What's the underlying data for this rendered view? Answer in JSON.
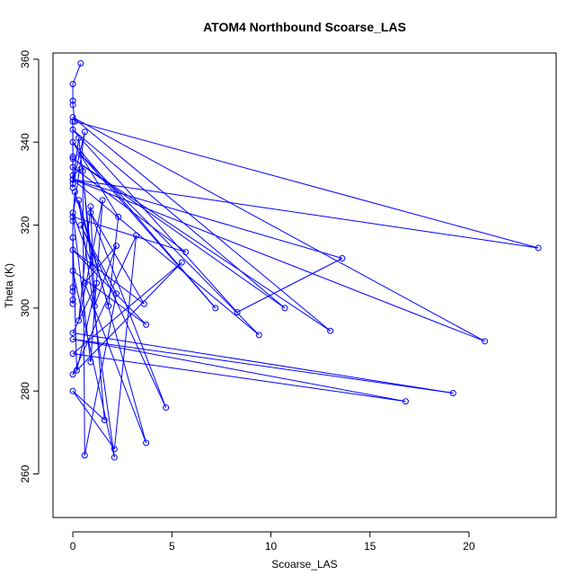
{
  "chart_data": {
    "type": "scatter",
    "title": "ATOM4 Northbound Scoarse_LAS",
    "xlabel": "Scoarse_LAS",
    "ylabel": "Theta (K)",
    "xlim": [
      -1,
      24.4
    ],
    "ylim": [
      249.5,
      361.5
    ],
    "x_ticks": [
      0,
      5,
      10,
      15,
      20
    ],
    "y_ticks": [
      260,
      280,
      300,
      320,
      340,
      360
    ],
    "grid": false,
    "legend": "none",
    "series_color": "#0000ff",
    "connected": true,
    "series": [
      {
        "points": [
          [
            0.4,
            359.0
          ],
          [
            0.0,
            354.0
          ],
          [
            0.0,
            350.0
          ],
          [
            0.0,
            349.0
          ],
          [
            0.1,
            345.0
          ],
          [
            23.5,
            314.5
          ],
          [
            0.0,
            331.0
          ],
          [
            13.6,
            312.0
          ],
          [
            8.3,
            299.0
          ],
          [
            0.0,
            343.0
          ],
          [
            10.7,
            300.0
          ],
          [
            0.0,
            336.0
          ],
          [
            13.0,
            294.5
          ],
          [
            0.0,
            346.0
          ],
          [
            20.8,
            292.0
          ],
          [
            0.0,
            331.0
          ],
          [
            9.4,
            293.5
          ],
          [
            0.4,
            337.0
          ],
          [
            7.2,
            300.0
          ],
          [
            0.0,
            340.0
          ],
          [
            2.3,
            322.0
          ],
          [
            1.8,
            300.5
          ],
          [
            0.1,
            328.0
          ],
          [
            0.0,
            321.0
          ],
          [
            0.0,
            317.0
          ],
          [
            0.0,
            304.0
          ],
          [
            0.0,
            302.0
          ],
          [
            0.0,
            301.0
          ],
          [
            0.0,
            305.0
          ],
          [
            0.0,
            317.0
          ],
          [
            0.2,
            285.0
          ],
          [
            1.2,
            306.0
          ],
          [
            0.0,
            294.0
          ],
          [
            19.2,
            279.5
          ],
          [
            0.0,
            292.5
          ],
          [
            16.8,
            277.5
          ],
          [
            0.0,
            289.0
          ],
          [
            5.5,
            311.0
          ],
          [
            0.0,
            284.0
          ],
          [
            3.2,
            317.5
          ],
          [
            2.1,
            266.0
          ],
          [
            0.0,
            280.0
          ],
          [
            1.6,
            273.0
          ],
          [
            0.5,
            333.0
          ],
          [
            0.6,
            264.5
          ],
          [
            2.2,
            303.5
          ],
          [
            0.4,
            320.0
          ],
          [
            4.7,
            276.0
          ],
          [
            0.9,
            323.0
          ],
          [
            3.6,
            301.0
          ],
          [
            0.0,
            314.0
          ],
          [
            3.7,
            296.0
          ],
          [
            0.0,
            309.0
          ],
          [
            2.1,
            264.0
          ],
          [
            0.3,
            326.0
          ],
          [
            3.7,
            267.5
          ],
          [
            0.6,
            306.0
          ],
          [
            2.2,
            315.0
          ],
          [
            1.1,
            300.5
          ],
          [
            0.9,
            324.5
          ],
          [
            0.3,
            297.0
          ],
          [
            1.5,
            326.0
          ],
          [
            0.9,
            287.0
          ],
          [
            0.0,
            323.0
          ],
          [
            1.0,
            310.0
          ],
          [
            0.3,
            341.0
          ],
          [
            0.0,
            330.0
          ],
          [
            0.6,
            342.5
          ],
          [
            0.0,
            322.0
          ],
          [
            5.7,
            313.5
          ],
          [
            0.0,
            334.0
          ],
          [
            0.0,
            336.5
          ],
          [
            0.0,
            329.0
          ],
          [
            0.0,
            345.0
          ],
          [
            0.0,
            332.0
          ],
          [
            0.4,
            333.5
          ]
        ]
      }
    ]
  }
}
